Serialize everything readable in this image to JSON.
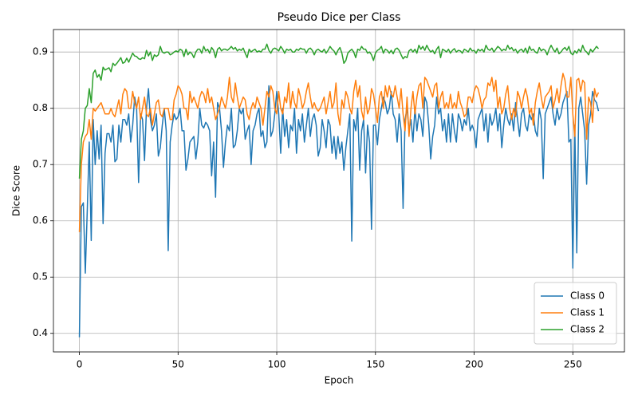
{
  "chart_data": {
    "type": "line",
    "title": "Pseudo Dice per Class",
    "xlabel": "Epoch",
    "ylabel": "Dice Score",
    "x": [
      0,
      1,
      2,
      3,
      4,
      5,
      6,
      7,
      8,
      9,
      10,
      11,
      12,
      13,
      14,
      15,
      16,
      17,
      18,
      19,
      20,
      21,
      22,
      23,
      24,
      25,
      26,
      27,
      28,
      29,
      30,
      31,
      32,
      33,
      34,
      35,
      36,
      37,
      38,
      39,
      40,
      41,
      42,
      43,
      44,
      45,
      46,
      47,
      48,
      49,
      50,
      51,
      52,
      53,
      54,
      55,
      56,
      57,
      58,
      59,
      60,
      61,
      62,
      63,
      64,
      65,
      66,
      67,
      68,
      69,
      70,
      71,
      72,
      73,
      74,
      75,
      76,
      77,
      78,
      79,
      80,
      81,
      82,
      83,
      84,
      85,
      86,
      87,
      88,
      89,
      90,
      91,
      92,
      93,
      94,
      95,
      96,
      97,
      98,
      99,
      100,
      101,
      102,
      103,
      104,
      105,
      106,
      107,
      108,
      109,
      110,
      111,
      112,
      113,
      114,
      115,
      116,
      117,
      118,
      119,
      120,
      121,
      122,
      123,
      124,
      125,
      126,
      127,
      128,
      129,
      130,
      131,
      132,
      133,
      134,
      135,
      136,
      137,
      138,
      139,
      140,
      141,
      142,
      143,
      144,
      145,
      146,
      147,
      148,
      149,
      150,
      151,
      152,
      153,
      154,
      155,
      156,
      157,
      158,
      159,
      160,
      161,
      162,
      163,
      164,
      165,
      166,
      167,
      168,
      169,
      170,
      171,
      172,
      173,
      174,
      175,
      176,
      177,
      178,
      179,
      180,
      181,
      182,
      183,
      184,
      185,
      186,
      187,
      188,
      189,
      190,
      191,
      192,
      193,
      194,
      195,
      196,
      197,
      198,
      199,
      200,
      201,
      202,
      203,
      204,
      205,
      206,
      207,
      208,
      209,
      210,
      211,
      212,
      213,
      214,
      215,
      216,
      217,
      218,
      219,
      220,
      221,
      222,
      223,
      224,
      225,
      226,
      227,
      228,
      229,
      230,
      231,
      232,
      233,
      234,
      235,
      236,
      237,
      238,
      239,
      240,
      241,
      242,
      243,
      244,
      245,
      246,
      247,
      248,
      249,
      250,
      251,
      252,
      253,
      254,
      255,
      256,
      257,
      258,
      259,
      260,
      261,
      262,
      263
    ],
    "series": [
      {
        "name": "Class 0",
        "color": "#1f77b4",
        "values": [
          0.393,
          0.625,
          0.632,
          0.507,
          0.62,
          0.74,
          0.565,
          0.78,
          0.7,
          0.76,
          0.71,
          0.77,
          0.595,
          0.72,
          0.755,
          0.755,
          0.74,
          0.77,
          0.705,
          0.71,
          0.77,
          0.74,
          0.78,
          0.78,
          0.77,
          0.79,
          0.74,
          0.77,
          0.82,
          0.8,
          0.668,
          0.79,
          0.78,
          0.707,
          0.8,
          0.835,
          0.78,
          0.76,
          0.77,
          0.79,
          0.715,
          0.73,
          0.77,
          0.8,
          0.76,
          0.547,
          0.74,
          0.77,
          0.79,
          0.78,
          0.785,
          0.8,
          0.76,
          0.76,
          0.69,
          0.71,
          0.74,
          0.745,
          0.75,
          0.71,
          0.74,
          0.8,
          0.77,
          0.765,
          0.775,
          0.77,
          0.76,
          0.68,
          0.74,
          0.642,
          0.81,
          0.8,
          0.76,
          0.695,
          0.74,
          0.77,
          0.76,
          0.8,
          0.73,
          0.735,
          0.76,
          0.8,
          0.79,
          0.8,
          0.745,
          0.76,
          0.77,
          0.7,
          0.76,
          0.77,
          0.79,
          0.8,
          0.75,
          0.76,
          0.73,
          0.74,
          0.84,
          0.75,
          0.76,
          0.79,
          0.83,
          0.79,
          0.72,
          0.8,
          0.75,
          0.78,
          0.73,
          0.77,
          0.76,
          0.8,
          0.72,
          0.78,
          0.76,
          0.79,
          0.74,
          0.77,
          0.8,
          0.75,
          0.78,
          0.79,
          0.77,
          0.715,
          0.73,
          0.78,
          0.76,
          0.73,
          0.78,
          0.77,
          0.72,
          0.75,
          0.71,
          0.75,
          0.72,
          0.74,
          0.69,
          0.73,
          0.76,
          0.79,
          0.564,
          0.78,
          0.76,
          0.8,
          0.69,
          0.76,
          0.78,
          0.685,
          0.77,
          0.74,
          0.585,
          0.77,
          0.77,
          0.735,
          0.78,
          0.8,
          0.82,
          0.81,
          0.79,
          0.8,
          0.83,
          0.79,
          0.78,
          0.74,
          0.79,
          0.76,
          0.622,
          0.78,
          0.8,
          0.76,
          0.78,
          0.74,
          0.8,
          0.76,
          0.79,
          0.78,
          0.75,
          0.82,
          0.81,
          0.77,
          0.71,
          0.75,
          0.77,
          0.82,
          0.79,
          0.8,
          0.76,
          0.78,
          0.74,
          0.79,
          0.74,
          0.79,
          0.76,
          0.74,
          0.79,
          0.78,
          0.76,
          0.78,
          0.77,
          0.8,
          0.76,
          0.77,
          0.76,
          0.73,
          0.78,
          0.79,
          0.8,
          0.76,
          0.79,
          0.74,
          0.79,
          0.77,
          0.78,
          0.8,
          0.76,
          0.79,
          0.73,
          0.77,
          0.8,
          0.78,
          0.77,
          0.79,
          0.76,
          0.81,
          0.78,
          0.75,
          0.79,
          0.8,
          0.77,
          0.76,
          0.79,
          0.78,
          0.79,
          0.76,
          0.75,
          0.8,
          0.78,
          0.675,
          0.79,
          0.8,
          0.81,
          0.82,
          0.79,
          0.77,
          0.8,
          0.78,
          0.79,
          0.81,
          0.82,
          0.83,
          0.74,
          0.745,
          0.516,
          0.77,
          0.543,
          0.8,
          0.82,
          0.79,
          0.76,
          0.665,
          0.77,
          0.79,
          0.83,
          0.815,
          0.81,
          0.795
        ]
      },
      {
        "name": "Class 1",
        "color": "#ff7f0e",
        "values": [
          0.58,
          0.7,
          0.74,
          0.75,
          0.755,
          0.78,
          0.745,
          0.8,
          0.795,
          0.8,
          0.805,
          0.81,
          0.8,
          0.79,
          0.79,
          0.79,
          0.8,
          0.79,
          0.785,
          0.8,
          0.815,
          0.79,
          0.825,
          0.835,
          0.83,
          0.8,
          0.8,
          0.83,
          0.81,
          0.8,
          0.82,
          0.78,
          0.8,
          0.82,
          0.79,
          0.785,
          0.8,
          0.77,
          0.79,
          0.81,
          0.815,
          0.79,
          0.785,
          0.8,
          0.8,
          0.8,
          0.78,
          0.78,
          0.815,
          0.825,
          0.84,
          0.835,
          0.825,
          0.8,
          0.8,
          0.78,
          0.83,
          0.81,
          0.82,
          0.81,
          0.8,
          0.82,
          0.83,
          0.825,
          0.81,
          0.835,
          0.81,
          0.82,
          0.8,
          0.78,
          0.79,
          0.8,
          0.82,
          0.81,
          0.8,
          0.82,
          0.855,
          0.82,
          0.81,
          0.845,
          0.82,
          0.8,
          0.81,
          0.82,
          0.815,
          0.79,
          0.78,
          0.8,
          0.81,
          0.8,
          0.82,
          0.81,
          0.8,
          0.77,
          0.8,
          0.83,
          0.82,
          0.84,
          0.83,
          0.8,
          0.79,
          0.83,
          0.8,
          0.79,
          0.82,
          0.81,
          0.845,
          0.8,
          0.83,
          0.81,
          0.8,
          0.835,
          0.82,
          0.8,
          0.81,
          0.83,
          0.845,
          0.82,
          0.8,
          0.81,
          0.8,
          0.795,
          0.8,
          0.81,
          0.82,
          0.79,
          0.81,
          0.83,
          0.8,
          0.81,
          0.845,
          0.79,
          0.77,
          0.815,
          0.8,
          0.83,
          0.82,
          0.8,
          0.79,
          0.83,
          0.85,
          0.82,
          0.84,
          0.795,
          0.78,
          0.82,
          0.79,
          0.8,
          0.835,
          0.825,
          0.8,
          0.775,
          0.82,
          0.83,
          0.8,
          0.84,
          0.82,
          0.84,
          0.825,
          0.82,
          0.84,
          0.82,
          0.8,
          0.835,
          0.79,
          0.76,
          0.82,
          0.75,
          0.8,
          0.83,
          0.79,
          0.82,
          0.84,
          0.845,
          0.8,
          0.855,
          0.85,
          0.84,
          0.83,
          0.82,
          0.84,
          0.845,
          0.8,
          0.82,
          0.83,
          0.8,
          0.81,
          0.8,
          0.825,
          0.8,
          0.81,
          0.8,
          0.83,
          0.81,
          0.8,
          0.785,
          0.79,
          0.82,
          0.82,
          0.81,
          0.83,
          0.84,
          0.835,
          0.82,
          0.8,
          0.815,
          0.82,
          0.845,
          0.84,
          0.855,
          0.83,
          0.85,
          0.8,
          0.82,
          0.79,
          0.8,
          0.825,
          0.84,
          0.8,
          0.78,
          0.8,
          0.785,
          0.83,
          0.82,
          0.8,
          0.82,
          0.835,
          0.82,
          0.79,
          0.8,
          0.77,
          0.81,
          0.83,
          0.845,
          0.82,
          0.8,
          0.82,
          0.825,
          0.83,
          0.84,
          0.8,
          0.815,
          0.835,
          0.81,
          0.84,
          0.862,
          0.85,
          0.82,
          0.82,
          0.855,
          0.79,
          0.75,
          0.85,
          0.853,
          0.83,
          0.85,
          0.845,
          0.745,
          0.82,
          0.81,
          0.775,
          0.835,
          0.82,
          0.828
        ]
      },
      {
        "name": "Class 2",
        "color": "#2ca02c",
        "values": [
          0.675,
          0.745,
          0.76,
          0.8,
          0.805,
          0.835,
          0.81,
          0.862,
          0.868,
          0.855,
          0.86,
          0.85,
          0.873,
          0.868,
          0.87,
          0.872,
          0.865,
          0.88,
          0.876,
          0.88,
          0.885,
          0.89,
          0.88,
          0.882,
          0.889,
          0.882,
          0.89,
          0.898,
          0.893,
          0.892,
          0.888,
          0.887,
          0.89,
          0.888,
          0.903,
          0.893,
          0.9,
          0.885,
          0.895,
          0.892,
          0.895,
          0.91,
          0.9,
          0.898,
          0.9,
          0.9,
          0.895,
          0.897,
          0.9,
          0.902,
          0.9,
          0.905,
          0.903,
          0.892,
          0.905,
          0.895,
          0.9,
          0.897,
          0.89,
          0.9,
          0.905,
          0.905,
          0.898,
          0.91,
          0.902,
          0.905,
          0.898,
          0.908,
          0.903,
          0.89,
          0.905,
          0.908,
          0.902,
          0.905,
          0.905,
          0.903,
          0.906,
          0.91,
          0.905,
          0.908,
          0.902,
          0.905,
          0.903,
          0.907,
          0.898,
          0.89,
          0.905,
          0.9,
          0.903,
          0.905,
          0.9,
          0.902,
          0.9,
          0.905,
          0.905,
          0.914,
          0.903,
          0.898,
          0.905,
          0.907,
          0.905,
          0.902,
          0.91,
          0.905,
          0.898,
          0.905,
          0.903,
          0.905,
          0.9,
          0.9,
          0.905,
          0.903,
          0.907,
          0.905,
          0.905,
          0.898,
          0.905,
          0.907,
          0.903,
          0.895,
          0.903,
          0.905,
          0.902,
          0.9,
          0.905,
          0.898,
          0.903,
          0.91,
          0.905,
          0.902,
          0.895,
          0.903,
          0.908,
          0.898,
          0.88,
          0.885,
          0.898,
          0.902,
          0.905,
          0.9,
          0.89,
          0.905,
          0.903,
          0.91,
          0.905,
          0.905,
          0.898,
          0.9,
          0.895,
          0.885,
          0.898,
          0.903,
          0.905,
          0.91,
          0.898,
          0.905,
          0.903,
          0.898,
          0.903,
          0.897,
          0.905,
          0.907,
          0.903,
          0.895,
          0.888,
          0.892,
          0.89,
          0.902,
          0.905,
          0.9,
          0.905,
          0.898,
          0.912,
          0.905,
          0.91,
          0.903,
          0.912,
          0.905,
          0.9,
          0.903,
          0.897,
          0.905,
          0.91,
          0.89,
          0.905,
          0.903,
          0.9,
          0.905,
          0.898,
          0.903,
          0.906,
          0.9,
          0.903,
          0.902,
          0.898,
          0.905,
          0.903,
          0.9,
          0.907,
          0.902,
          0.903,
          0.898,
          0.905,
          0.902,
          0.905,
          0.9,
          0.912,
          0.905,
          0.903,
          0.907,
          0.9,
          0.905,
          0.91,
          0.907,
          0.902,
          0.905,
          0.903,
          0.912,
          0.905,
          0.908,
          0.902,
          0.905,
          0.898,
          0.903,
          0.905,
          0.9,
          0.907,
          0.898,
          0.91,
          0.903,
          0.905,
          0.9,
          0.898,
          0.908,
          0.902,
          0.905,
          0.903,
          0.895,
          0.905,
          0.912,
          0.905,
          0.9,
          0.907,
          0.897,
          0.9,
          0.905,
          0.908,
          0.903,
          0.91,
          0.898,
          0.895,
          0.902,
          0.898,
          0.905,
          0.9,
          0.912,
          0.903,
          0.9,
          0.895,
          0.905,
          0.9,
          0.905,
          0.91,
          0.906
        ]
      }
    ],
    "xlim": [
      -13.15,
      276.15
    ],
    "xticks": [
      0,
      50,
      100,
      150,
      200,
      250
    ],
    "ylim": [
      0.367,
      0.94
    ],
    "yticks": [
      0.4,
      0.5,
      0.6,
      0.7,
      0.8,
      0.9
    ],
    "grid": true,
    "legend": "lower right"
  }
}
